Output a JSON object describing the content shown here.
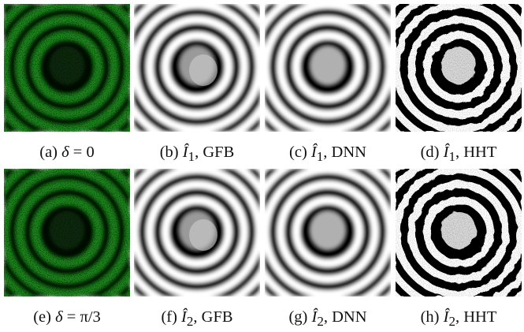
{
  "panels": [
    {
      "id": "a",
      "kind": "speckle",
      "caption": {
        "label": "(a)",
        "symbol": "δ",
        "rest": " = 0"
      }
    },
    {
      "id": "b",
      "kind": "gfb",
      "caption": {
        "label": "(b)",
        "symbol": "Î",
        "subscript": "1",
        "rest": ", GFB"
      }
    },
    {
      "id": "c",
      "kind": "dnn",
      "caption": {
        "label": "(c)",
        "symbol": "Î",
        "subscript": "1",
        "rest": ", DNN"
      }
    },
    {
      "id": "d",
      "kind": "hht",
      "caption": {
        "label": "(d)",
        "symbol": "Î",
        "subscript": "1",
        "rest": ", HHT"
      }
    },
    {
      "id": "e",
      "kind": "speckle",
      "caption": {
        "label": "(e)",
        "symbol": "δ",
        "rest": " = π/3"
      }
    },
    {
      "id": "f",
      "kind": "gfb",
      "caption": {
        "label": "(f)",
        "symbol": "Î",
        "subscript": "2",
        "rest": ", GFB"
      }
    },
    {
      "id": "g",
      "kind": "dnn",
      "caption": {
        "label": "(g)",
        "symbol": "Î",
        "subscript": "2",
        "rest": ", DNN"
      }
    },
    {
      "id": "h",
      "kind": "hht",
      "caption": {
        "label": "(h)",
        "symbol": "Î",
        "subscript": "2",
        "rest": ", HHT"
      }
    }
  ],
  "colors": {
    "speckle_bg": "#050a05",
    "speckle_fringe": "#1f8a1f",
    "fringe_dark": "#000000",
    "fringe_light": "#ffffff"
  }
}
